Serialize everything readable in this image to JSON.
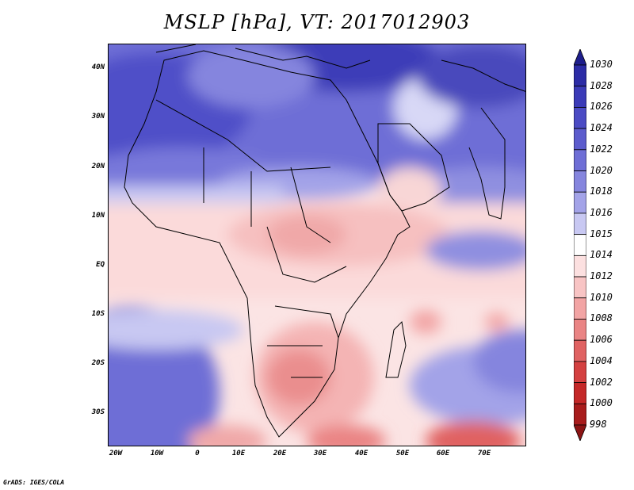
{
  "title": "MSLP [hPa], VT: 2017012903",
  "credit": "GrADS: IGES/COLA",
  "lat_labels": [
    "40N",
    "30N",
    "20N",
    "10N",
    "EQ",
    "10S",
    "20S",
    "30S"
  ],
  "lon_labels": [
    "20W",
    "10W",
    "0",
    "10E",
    "20E",
    "30E",
    "40E",
    "50E",
    "60E",
    "70E"
  ],
  "colorbar": {
    "levels": [
      "1030",
      "1028",
      "1026",
      "1024",
      "1022",
      "1020",
      "1018",
      "1016",
      "1015",
      "1014",
      "1012",
      "1010",
      "1008",
      "1006",
      "1004",
      "1002",
      "1000",
      "998"
    ],
    "colors": [
      "#1e1e8c",
      "#2c2ca6",
      "#3b3bb8",
      "#4b4bc4",
      "#5c5ccd",
      "#6e6ed6",
      "#8585de",
      "#a3a3e8",
      "#c8c8f2",
      "#ffffff",
      "#fce0e0",
      "#f8c4c4",
      "#f2a4a4",
      "#ea8484",
      "#e06262",
      "#d44040",
      "#c42828",
      "#a81c1c",
      "#8c1414"
    ]
  },
  "map": {
    "field": "mean sea level pressure",
    "high_pressure_regions": [
      "North Africa / Mediterranean",
      "South Atlantic",
      "Arabian Sea"
    ],
    "low_pressure_regions": [
      "Sahel / Central Africa",
      "Southern Africa interior",
      "Southern Ocean south of Africa"
    ]
  }
}
